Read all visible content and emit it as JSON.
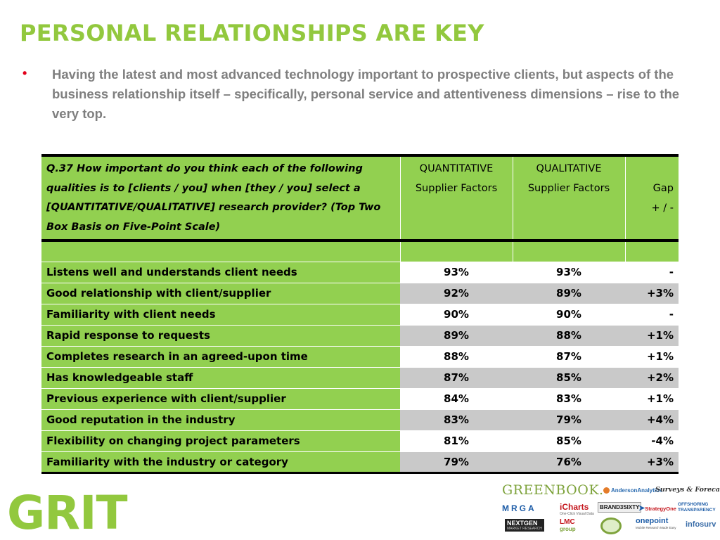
{
  "slide": {
    "title": "PERSONAL RELATIONSHIPS ARE KEY",
    "bullet_marker": "•",
    "bullet_text": "Having the latest and most advanced technology important to prospective clients, but aspects of the business relationship itself – specifically, personal service and attentiveness dimensions – rise to the very top."
  },
  "table": {
    "question": "Q.37 How important do you think each of the following qualities is to [clients / you] when [they / you] select a [QUANTITATIVE/QUALITATIVE] research provider? (Top Two Box Basis on Five-Point Scale)",
    "col_quant_line1": "QUANTITATIVE",
    "col_quant_line2": "Supplier Factors",
    "col_qual_line1": "QUALITATIVE",
    "col_qual_line2": "Supplier Factors",
    "col_gap_line1": "Gap",
    "col_gap_line2": "+ / -",
    "rows": [
      {
        "label": "Listens well and understands client needs",
        "quant": "93%",
        "qual": "93%",
        "gap": "-"
      },
      {
        "label": "Good relationship with client/supplier",
        "quant": "92%",
        "qual": "89%",
        "gap": "+3%"
      },
      {
        "label": "Familiarity with client needs",
        "quant": "90%",
        "qual": "90%",
        "gap": "-"
      },
      {
        "label": "Rapid response to requests",
        "quant": "89%",
        "qual": "88%",
        "gap": "+1%"
      },
      {
        "label": "Completes research in an agreed-upon time",
        "quant": "88%",
        "qual": "87%",
        "gap": "+1%"
      },
      {
        "label": "Has knowledgeable staff",
        "quant": "87%",
        "qual": "85%",
        "gap": "+2%"
      },
      {
        "label": "Previous experience with client/supplier",
        "quant": "84%",
        "qual": "83%",
        "gap": "+1%"
      },
      {
        "label": "Good reputation in the industry",
        "quant": "83%",
        "qual": "79%",
        "gap": "+4%"
      },
      {
        "label": "Flexibility on changing project parameters",
        "quant": "81%",
        "qual": "85%",
        "gap": "-4%"
      },
      {
        "label": "Familiarity with the industry or category",
        "quant": "79%",
        "qual": "76%",
        "gap": "+3%"
      }
    ]
  },
  "footer": {
    "grit_logo": "GRIT",
    "sponsors": {
      "greenbook": "GREENBOOK.",
      "anderson": "AndersonAnalytics",
      "surveys": "Surveys & Forecasts, LLC",
      "mrga": "MRGA",
      "icharts": "iCharts",
      "icharts_tag": "One-Click Visual Data",
      "brand3": "BRAND3SIXTY",
      "strategyone": "StrategyOne",
      "offshoring_1": "OFFSHORING",
      "offshoring_2": "TRANSPARENCY",
      "nextgen": "NEXTGEN",
      "nextgen_tag": "MARKET RESEARCH",
      "lmc": "LMC",
      "lmc_group": "group",
      "onepoint": "onepoint",
      "onepoint_tag": "Mobile Research Made Easy",
      "infosurv": "infosurv"
    }
  },
  "colors": {
    "title_green": "#92c83e",
    "table_green": "#92d050",
    "row_gray": "#c9c9c9",
    "bullet_red": "#e2001a",
    "body_gray": "#7f7f7f"
  }
}
